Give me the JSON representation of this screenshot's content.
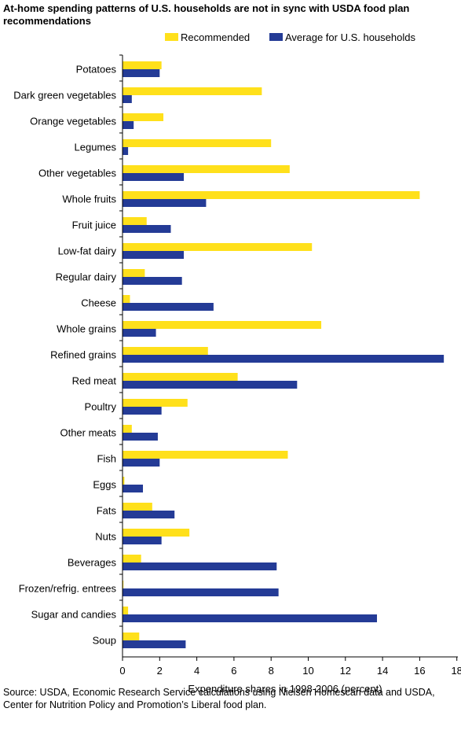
{
  "title": "At-home spending patterns of U.S. households are not in sync with USDA food plan recommendations",
  "source": "Source: USDA, Economic Research Service calculations using Nielsen Homescan data and USDA, Center for Nutrition Policy and Promotion’s Liberal food plan.",
  "colors": {
    "recommended": "#FFE01B",
    "average": "#243B96"
  },
  "chart_data": {
    "type": "bar",
    "orientation": "horizontal",
    "title": "At-home spending patterns of U.S. households are not in sync with USDA food plan recommendations",
    "xlabel": "Expenditure shares in 1998-2006 (percent)",
    "ylabel": "",
    "xlim": [
      0,
      18
    ],
    "xticks": [
      0,
      2,
      4,
      6,
      8,
      10,
      12,
      14,
      16,
      18
    ],
    "legend": "top",
    "grid": false,
    "categories": [
      "Potatoes",
      "Dark green vegetables",
      "Orange vegetables",
      "Legumes",
      "Other vegetables",
      "Whole fruits",
      "Fruit juice",
      "Low-fat dairy",
      "Regular dairy",
      "Cheese",
      "Whole grains",
      "Refined grains",
      "Red meat",
      "Poultry",
      "Other meats",
      "Fish",
      "Eggs",
      "Fats",
      "Nuts",
      "Beverages",
      "Frozen/refrig. entrees",
      "Sugar and candies",
      "Soup"
    ],
    "series": [
      {
        "name": "Recommended",
        "values": [
          2.1,
          7.5,
          2.2,
          8.0,
          9.0,
          16.0,
          1.3,
          10.2,
          1.2,
          0.4,
          10.7,
          4.6,
          6.2,
          3.5,
          0.5,
          8.9,
          0.1,
          1.6,
          3.6,
          1.0,
          0.05,
          0.3,
          0.9
        ]
      },
      {
        "name": "Average for U.S. households",
        "values": [
          2.0,
          0.5,
          0.6,
          0.3,
          3.3,
          4.5,
          2.6,
          3.3,
          3.2,
          4.9,
          1.8,
          17.3,
          9.4,
          2.1,
          1.9,
          2.0,
          1.1,
          2.8,
          2.1,
          8.3,
          8.4,
          13.7,
          3.4
        ]
      }
    ]
  }
}
